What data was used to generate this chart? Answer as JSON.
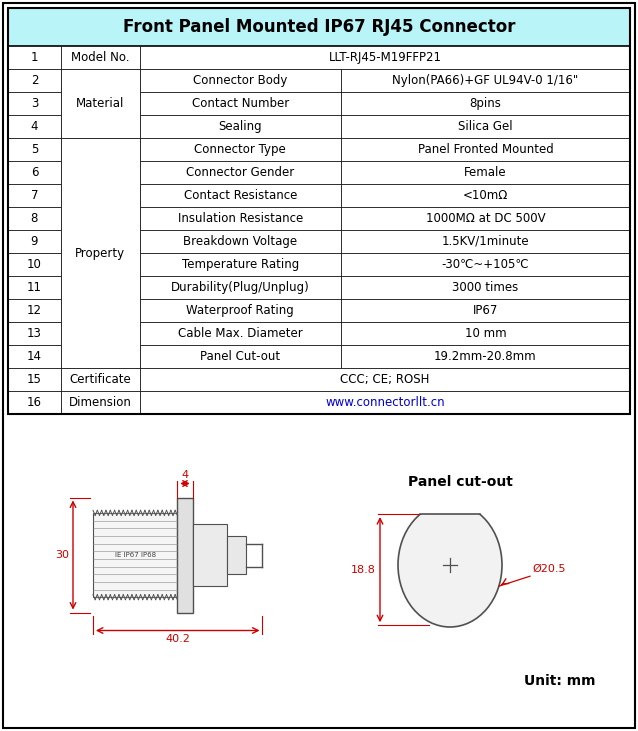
{
  "title": "Front Panel Mounted IP67 RJ45 Connector",
  "title_bg": "#b8f4f8",
  "border_color": "#000000",
  "rows": [
    {
      "num": "1",
      "col2": "Model No.",
      "col3": "",
      "col4": "LLT-RJ45-M19FFP21",
      "span34": true
    },
    {
      "num": "2",
      "col2": "Material",
      "col3": "Connector Body",
      "col4": "Nylon(PA66)+GF UL94V-0 1/16\"",
      "span34": false
    },
    {
      "num": "3",
      "col2": "Material",
      "col3": "Contact Number",
      "col4": "8pins",
      "span34": false
    },
    {
      "num": "4",
      "col2": "Material",
      "col3": "Sealing",
      "col4": "Silica Gel",
      "span34": false
    },
    {
      "num": "5",
      "col2": "Property",
      "col3": "Connector Type",
      "col4": "Panel Fronted Mounted",
      "span34": false
    },
    {
      "num": "6",
      "col2": "Property",
      "col3": "Connector Gender",
      "col4": "Female",
      "span34": false
    },
    {
      "num": "7",
      "col2": "Property",
      "col3": "Contact Resistance",
      "col4": "<10mΩ",
      "span34": false
    },
    {
      "num": "8",
      "col2": "Property",
      "col3": "Insulation Resistance",
      "col4": "1000MΩ at DC 500V",
      "span34": false
    },
    {
      "num": "9",
      "col2": "Property",
      "col3": "Breakdown Voltage",
      "col4": "1.5KV/1minute",
      "span34": false
    },
    {
      "num": "10",
      "col2": "Property",
      "col3": "Temperature Rating",
      "col4": "-30℃~+105℃",
      "span34": false
    },
    {
      "num": "11",
      "col2": "Property",
      "col3": "Durability(Plug/Unplug)",
      "col4": "3000 times",
      "span34": false
    },
    {
      "num": "12",
      "col2": "Property",
      "col3": "Waterproof Rating",
      "col4": "IP67",
      "span34": false
    },
    {
      "num": "13",
      "col2": "Property",
      "col3": "Cable Max. Diameter",
      "col4": "10 mm",
      "span34": false
    },
    {
      "num": "14",
      "col2": "Property",
      "col3": "Panel Cut-out",
      "col4": "19.2mm-20.8mm",
      "span34": false
    },
    {
      "num": "15",
      "col2": "Certificate",
      "col3": "",
      "col4": "CCC; CE; ROSH",
      "span34": true
    },
    {
      "num": "16",
      "col2": "Dimension",
      "col3": "",
      "col4": "www.connectorllt.cn",
      "span34": true
    }
  ],
  "merge_groups": [
    [
      1,
      3,
      "Material"
    ],
    [
      4,
      13,
      "Property"
    ]
  ],
  "url_color": "#0000cc",
  "text_fontsize": 8.5,
  "title_fontsize": 12,
  "red_color": "#cc0000",
  "draw_color": "#505050"
}
